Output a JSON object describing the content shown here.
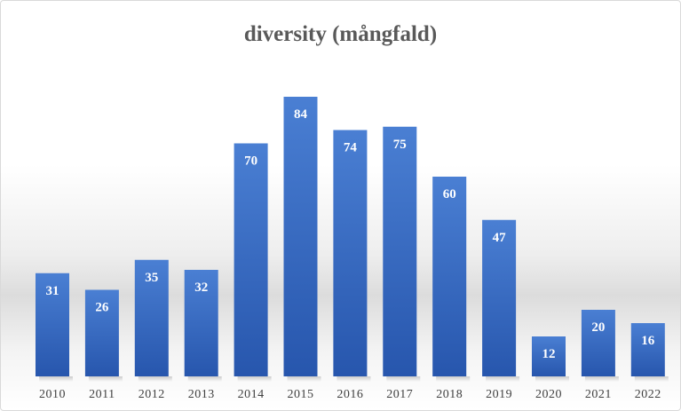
{
  "chart_data": {
    "type": "bar",
    "title": "diversity (mångfald)",
    "xlabel": "",
    "ylabel": "",
    "categories": [
      "2010",
      "2011",
      "2012",
      "2013",
      "2014",
      "2015",
      "2016",
      "2017",
      "2018",
      "2019",
      "2020",
      "2021",
      "2022"
    ],
    "values": [
      31,
      26,
      35,
      32,
      70,
      84,
      74,
      75,
      60,
      47,
      12,
      20,
      16
    ],
    "ylim": [
      0,
      84
    ],
    "grid": false,
    "legend": "none",
    "data_labels": true,
    "colors": {
      "bar_top": "#4a7fd3",
      "bar_bottom": "#2756ad",
      "label": "#ffffff",
      "title": "#595959",
      "tick": "#404040"
    }
  }
}
